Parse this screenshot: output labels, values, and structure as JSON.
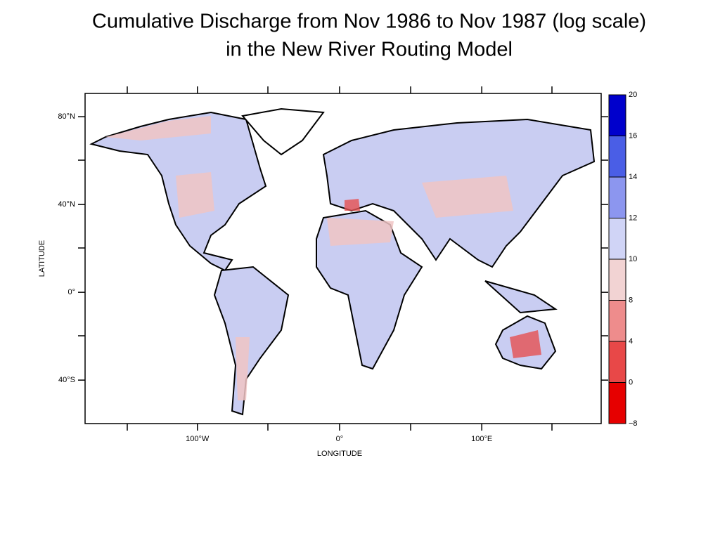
{
  "map": {
    "title": [
      "Cumulative Discharge from Nov 1986 to Nov 1987  (log scale)",
      "in the New River Routing Model"
    ],
    "xlabel": "LONGITUDE",
    "ylabel": "LATITUDE",
    "xlim": [
      -179,
      184
    ],
    "ylim": [
      -59.8,
      90.6
    ],
    "xticks": [
      {
        "value": -100,
        "label": "100°W"
      },
      {
        "value": 0,
        "label": "0°"
      },
      {
        "value": 100,
        "label": "100°E"
      }
    ],
    "yticks": [
      {
        "value": 80,
        "label": "80°N"
      },
      {
        "value": 40,
        "label": "40°N"
      },
      {
        "value": 0,
        "label": "0°"
      },
      {
        "value": -40,
        "label": "40°S"
      }
    ],
    "colorbar": {
      "levels": [
        {
          "value": -8,
          "label": "−8"
        },
        0,
        4,
        8,
        10,
        12,
        14,
        16,
        20
      ],
      "colors": [
        "#e60000",
        "#e84848",
        "#ee8c8c",
        "#f2d3d3",
        "#d0d4f6",
        "#8c96ef",
        "#4a5ee6",
        "#0000cc"
      ]
    }
  }
}
